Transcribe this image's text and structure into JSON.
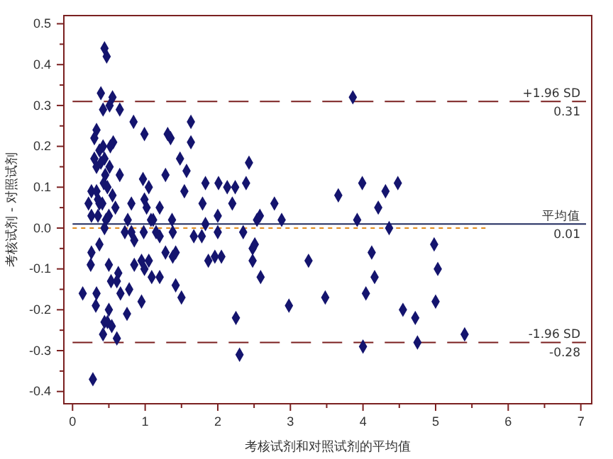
{
  "chart_data": {
    "type": "scatter",
    "xlabel": "考核试剂和对照试剂的平均值",
    "ylabel": "考核试剂 - 对照试剂",
    "xlim": [
      -0.12,
      7.15
    ],
    "ylim": [
      -0.43,
      0.52
    ],
    "xticks": [
      0,
      {
        "value": 0.5,
        "label": null
      },
      1,
      {
        "value": 1.5,
        "label": null
      },
      2,
      {
        "value": 2.5,
        "label": null
      },
      3,
      {
        "value": 3.5,
        "label": null
      },
      4,
      {
        "value": 4.5,
        "label": null
      },
      5,
      {
        "value": 5.5,
        "label": null
      },
      6,
      {
        "value": 6.5,
        "label": null
      },
      7
    ],
    "yticks": [
      -0.4,
      {
        "value": -0.35,
        "label": null
      },
      -0.3,
      {
        "value": -0.25,
        "label": null
      },
      -0.2,
      {
        "value": -0.15,
        "label": null
      },
      -0.1,
      {
        "value": -0.05,
        "label": null
      },
      {
        "value": 0,
        "label": "0.0"
      },
      {
        "value": 0.05,
        "label": null
      },
      0.1,
      {
        "value": 0.15,
        "label": null
      },
      0.2,
      {
        "value": 0.25,
        "label": null
      },
      0.3,
      {
        "value": 0.35,
        "label": null
      },
      0.4,
      {
        "value": 0.45,
        "label": null
      },
      0.5
    ],
    "grid": false,
    "annotations": [
      {
        "text": "0.31",
        "y": 0.31
      },
      {
        "text": "0.01",
        "y": 0.01
      },
      {
        "text": "-0.28",
        "y": -0.28
      }
    ],
    "ref_lines": [
      {
        "axis": "y",
        "value": 0.31,
        "label": "+1.96 SD",
        "color": "#7a1f1f",
        "line_style": "dashed"
      },
      {
        "axis": "y",
        "value": 0.01,
        "label": "平均值",
        "color": "#1f2a5e",
        "line_style": "solid"
      },
      {
        "axis": "y",
        "value": -0.28,
        "label": "-1.96 SD",
        "color": "#7a1f1f",
        "line_style": "dashed"
      }
    ],
    "series": [
      {
        "marker": "diamond",
        "color": "#14146e",
        "x": [
          0.44,
          0.47,
          0.39,
          0.55,
          0.42,
          0.51,
          0.65,
          0.33,
          0.3,
          0.84,
          0.99,
          1.63,
          1.31,
          1.35,
          1.63,
          0.37,
          0.42,
          0.52,
          0.56,
          0.3,
          0.44,
          0.33,
          0.39,
          0.51,
          1.48,
          1.57,
          2.43,
          0.45,
          0.65,
          1.28,
          0.43,
          0.48,
          0.97,
          1.05,
          1.83,
          2.01,
          2.13,
          2.24,
          2.39,
          1.54,
          0.26,
          0.33,
          0.55,
          0.37,
          0.22,
          0.35,
          0.41,
          0.81,
          0.99,
          1.02,
          1.2,
          1.79,
          2.2,
          2.78,
          0.59,
          0.26,
          0.35,
          0.46,
          0.5,
          0.76,
          1.08,
          1.11,
          1.37,
          2.0,
          2.54,
          2.58,
          2.88,
          3.86,
          3.66,
          3.99,
          4.31,
          4.48,
          4.21,
          3.92,
          4.36,
          0.44,
          0.26,
          0.37,
          0.25,
          0.5,
          0.14,
          0.33,
          0.32,
          0.5,
          0.44,
          0.48,
          0.54,
          0.42,
          0.61,
          0.28,
          0.53,
          0.63,
          0.61,
          0.66,
          0.78,
          0.75,
          0.72,
          0.81,
          0.85,
          0.98,
          0.85,
          0.95,
          0.99,
          1.05,
          1.09,
          1.2,
          0.95,
          1.15,
          1.2,
          1.28,
          1.38,
          1.42,
          1.38,
          1.42,
          1.5,
          1.67,
          1.78,
          1.87,
          1.96,
          2.05,
          2.0,
          1.83,
          2.25,
          2.3,
          2.35,
          2.48,
          2.51,
          2.48,
          2.59,
          2.98,
          3.25,
          3.48,
          4.04,
          4.12,
          4.16,
          4.0,
          4.55,
          4.72,
          4.75,
          4.98,
          5.03,
          5.0,
          5.4
        ],
        "values": [
          0.44,
          0.42,
          0.33,
          0.32,
          0.29,
          0.3,
          0.29,
          0.24,
          0.22,
          0.26,
          0.23,
          0.26,
          0.23,
          0.22,
          0.21,
          0.19,
          0.2,
          0.2,
          0.21,
          0.17,
          0.17,
          0.15,
          0.16,
          0.15,
          0.17,
          0.14,
          0.16,
          0.13,
          0.13,
          0.13,
          0.11,
          0.1,
          0.12,
          0.1,
          0.11,
          0.11,
          0.1,
          0.1,
          0.11,
          0.09,
          0.09,
          0.09,
          0.08,
          0.06,
          0.06,
          0.07,
          0.06,
          0.06,
          0.07,
          0.05,
          0.05,
          0.06,
          0.06,
          0.06,
          0.05,
          0.03,
          0.03,
          0.02,
          0.03,
          0.02,
          0.02,
          0.02,
          0.02,
          0.03,
          0.02,
          0.03,
          0.02,
          0.32,
          0.08,
          0.11,
          0.09,
          0.11,
          0.05,
          0.02,
          0.0,
          0.0,
          -0.06,
          -0.04,
          -0.09,
          -0.09,
          -0.16,
          -0.16,
          -0.19,
          -0.2,
          -0.23,
          -0.23,
          -0.24,
          -0.26,
          -0.27,
          -0.37,
          -0.13,
          -0.11,
          -0.13,
          -0.16,
          -0.15,
          -0.21,
          -0.01,
          -0.01,
          -0.03,
          -0.01,
          -0.09,
          -0.08,
          -0.1,
          -0.08,
          -0.12,
          -0.12,
          -0.18,
          -0.01,
          -0.02,
          -0.06,
          -0.07,
          -0.06,
          -0.01,
          -0.14,
          -0.17,
          -0.02,
          -0.02,
          -0.08,
          -0.07,
          -0.07,
          -0.01,
          0.01,
          -0.22,
          -0.31,
          -0.01,
          -0.05,
          -0.04,
          -0.08,
          -0.12,
          -0.19,
          -0.08,
          -0.17,
          -0.16,
          -0.06,
          -0.12,
          -0.29,
          -0.2,
          -0.22,
          -0.28,
          -0.04,
          -0.1,
          -0.18,
          -0.26
        ]
      },
      {
        "type": "line",
        "marker": "none",
        "line_style": "dotted",
        "color": "#e08a1e",
        "x": [
          0,
          5.7
        ],
        "values": [
          0,
          0
        ]
      }
    ]
  }
}
